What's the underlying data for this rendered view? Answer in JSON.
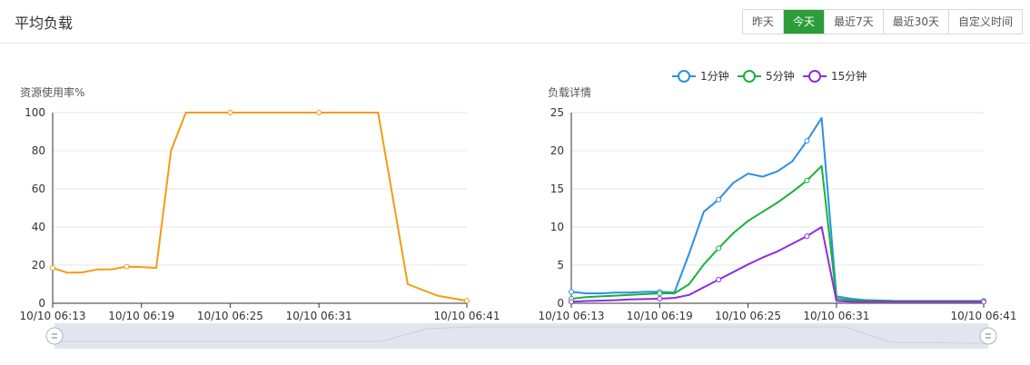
{
  "header": {
    "title": "平均负载",
    "range_buttons": [
      {
        "label": "昨天",
        "active": false
      },
      {
        "label": "今天",
        "active": true
      },
      {
        "label": "最近7天",
        "active": false
      },
      {
        "label": "最近30天",
        "active": false
      },
      {
        "label": "自定义时间",
        "active": false
      }
    ]
  },
  "colors": {
    "accent": "#2b9d3a",
    "usage_line": "#f39c12",
    "load_1": "#2b8fe8",
    "load_5": "#17b33a",
    "load_15": "#8e2be2",
    "grid": "#e6e6e6",
    "zoom_bar": "#e1e6ee"
  },
  "chart_data": [
    {
      "type": "line",
      "ylabel": "资源使用率%",
      "ylim": [
        0,
        100
      ],
      "yticks": [
        0,
        20,
        40,
        60,
        80,
        100
      ],
      "xtick_labels": [
        "10/10 06:13",
        "10/10 06:19",
        "10/10 06:25",
        "10/10 06:31",
        "10/10 06:41"
      ],
      "x": [
        "06:13",
        "06:14",
        "06:15",
        "06:16",
        "06:17",
        "06:18",
        "06:19",
        "06:20",
        "06:21",
        "06:22",
        "06:23",
        "06:25",
        "06:27",
        "06:29",
        "06:31",
        "06:33",
        "06:35",
        "06:37",
        "06:39",
        "06:41"
      ],
      "series": [
        {
          "values": [
            18.5,
            16,
            16.2,
            17.7,
            17.8,
            19.2,
            19,
            18.5,
            80,
            100,
            100,
            100,
            100,
            100,
            100,
            100,
            100,
            10,
            4,
            1.3
          ]
        }
      ],
      "grid": true
    },
    {
      "type": "line",
      "ylabel": "负载详情",
      "ylim": [
        0,
        25
      ],
      "yticks": [
        0,
        5,
        10,
        15,
        20,
        25
      ],
      "xtick_labels": [
        "10/10 06:13",
        "10/10 06:19",
        "10/10 06:25",
        "10/10 06:31",
        "10/10 06:41"
      ],
      "legend_position": "top",
      "x": [
        "06:13",
        "06:14",
        "06:15",
        "06:16",
        "06:17",
        "06:18",
        "06:19",
        "06:20",
        "06:21",
        "06:22",
        "06:23",
        "06:24",
        "06:25",
        "06:26",
        "06:27",
        "06:28",
        "06:29",
        "06:30",
        "06:31",
        "06:32",
        "06:33",
        "06:35",
        "06:37",
        "06:39",
        "06:41"
      ],
      "series": [
        {
          "name": "1分钟",
          "values": [
            1.5,
            1.3,
            1.3,
            1.4,
            1.4,
            1.5,
            1.5,
            1.4,
            6.5,
            12,
            13.6,
            15.8,
            17,
            16.6,
            17.3,
            18.6,
            21.3,
            24.3,
            0.9,
            0.6,
            0.4,
            0.3,
            0.3,
            0.3,
            0.3
          ]
        },
        {
          "name": "5分钟",
          "values": [
            0.6,
            0.8,
            0.9,
            1.0,
            1.1,
            1.2,
            1.3,
            1.3,
            2.5,
            5.1,
            7.2,
            9.2,
            10.8,
            12.0,
            13.2,
            14.6,
            16.1,
            18.0,
            0.6,
            0.4,
            0.4,
            0.3,
            0.3,
            0.3,
            0.3
          ]
        },
        {
          "name": "15分钟",
          "values": [
            0.2,
            0.3,
            0.35,
            0.4,
            0.5,
            0.55,
            0.6,
            0.7,
            1.1,
            2.1,
            3.1,
            4.1,
            5.1,
            6.0,
            6.8,
            7.8,
            8.8,
            10.0,
            0.3,
            0.2,
            0.2,
            0.2,
            0.2,
            0.2,
            0.2
          ]
        }
      ],
      "grid": true
    }
  ]
}
